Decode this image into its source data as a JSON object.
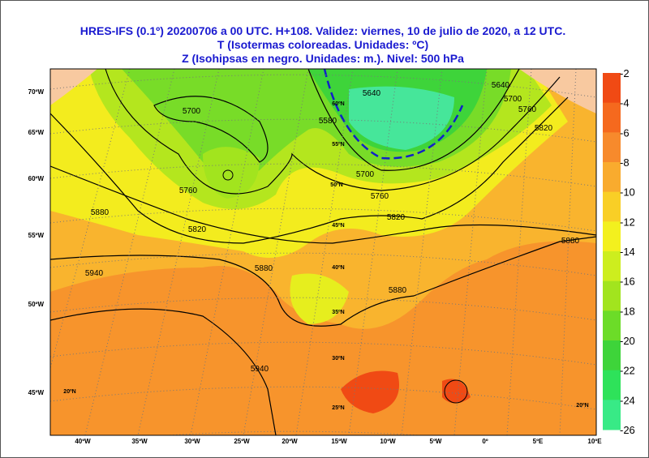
{
  "title": {
    "line1": "HRES-IFS (0.1º) 20200706 a 00 UTC.  H+108. Validez: viernes, 10 de julio de 2020,  a  12 UTC.",
    "line2": "T (Isotermas coloreadas. Unidades: ºC)",
    "line3": "Z (Isohipsas en negro. Unidades: m.).   Nivel: 500 hPa"
  },
  "colorbar": {
    "levels": [
      -2,
      -4,
      -6,
      -8,
      -10,
      -12,
      -14,
      -16,
      -18,
      -20,
      -22,
      -24,
      -26
    ],
    "colors": [
      "#f04a14",
      "#f5691e",
      "#f78a2c",
      "#f9ab2e",
      "#f9cf26",
      "#f3f01e",
      "#cdee1e",
      "#a2e41e",
      "#6cdc28",
      "#3ed43a",
      "#2ee25a",
      "#38ea86"
    ]
  },
  "bottom_axis": [
    "40ºW",
    "35ºW",
    "30ºW",
    "25ºW",
    "20ºW",
    "15ºW",
    "10ºW",
    "5ºW",
    "0º",
    "5ºE",
    "10ºE"
  ],
  "left_axis": [
    "70ºW",
    "65ºW",
    "60ºW",
    "55ºW",
    "50ºW",
    "45ºW"
  ],
  "grid_labels": [
    "60ºN",
    "55ºN",
    "50ºN",
    "45ºN",
    "40ºN",
    "35ºN",
    "30ºN",
    "25ºN",
    "20ºN",
    "20ºN"
  ],
  "contour_labels": [
    5700,
    5640,
    5580,
    5760,
    5760,
    5820,
    5820,
    5880,
    5880,
    5880,
    5880,
    5940,
    5940,
    5700,
    5640,
    5700,
    5760,
    5820
  ]
}
